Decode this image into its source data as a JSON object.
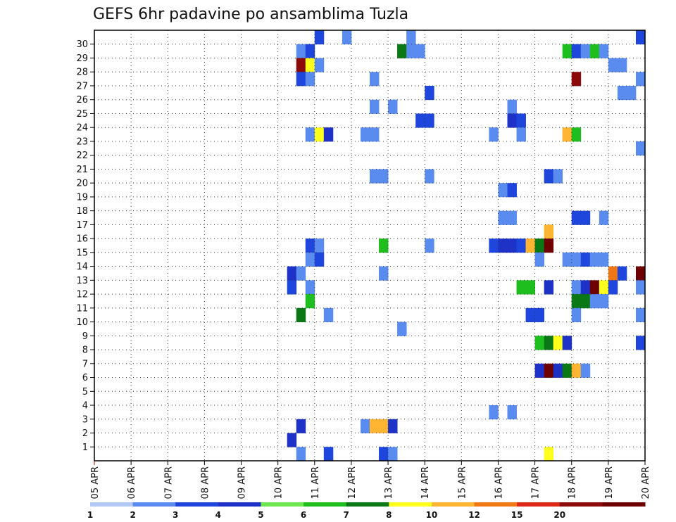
{
  "chart_data": {
    "type": "heatmap",
    "title": "GEFS 6hr padavine po ansamblima Tuzla",
    "y_categories": [
      "1",
      "2",
      "3",
      "4",
      "5",
      "6",
      "7",
      "8",
      "9",
      "10",
      "11",
      "12",
      "13",
      "14",
      "15",
      "16",
      "17",
      "18",
      "19",
      "20",
      "21",
      "22",
      "23",
      "24",
      "25",
      "26",
      "27",
      "28",
      "29",
      "30"
    ],
    "x_tick_labels": [
      "05 APR",
      "06 APR",
      "07 APR",
      "08 APR",
      "09 APR",
      "10 APR",
      "11 APR",
      "12 APR",
      "13 APR",
      "14 APR",
      "15 APR",
      "16 APR",
      "17 APR",
      "18 APR",
      "19 APR",
      "20 APR"
    ],
    "time_step_hours": 6,
    "grid": true,
    "colorbar": {
      "levels": [
        "1",
        "2",
        "3",
        "4",
        "5",
        "6",
        "7",
        "8",
        "10",
        "12",
        "15",
        "20"
      ],
      "colors": [
        "#b4c8f5",
        "#5a8cf0",
        "#1e46dc",
        "#1e32c8",
        "#6ee650",
        "#1ebe1e",
        "#0a7814",
        "#ffff1e",
        "#ffb432",
        "#f07814",
        "#dc2814",
        "#8c0a0a",
        "#6e0000"
      ]
    },
    "cells": [
      {
        "m": 30,
        "t": "11 APR 00",
        "c": 2
      },
      {
        "m": 30,
        "t": "11 APR 18",
        "c": 1
      },
      {
        "m": 30,
        "t": "13 APR 12",
        "c": 1
      },
      {
        "m": 30,
        "t": "19 APR 18",
        "c": 2
      },
      {
        "m": 29,
        "t": "10 APR 12",
        "c": 1
      },
      {
        "m": 29,
        "t": "10 APR 18",
        "c": 2
      },
      {
        "m": 29,
        "t": "13 APR 06",
        "c": 6
      },
      {
        "m": 29,
        "t": "13 APR 12",
        "c": 1
      },
      {
        "m": 29,
        "t": "13 APR 18",
        "c": 1
      },
      {
        "m": 29,
        "t": "17 APR 18",
        "c": 5
      },
      {
        "m": 29,
        "t": "18 APR 00",
        "c": 2
      },
      {
        "m": 29,
        "t": "18 APR 06",
        "c": 1
      },
      {
        "m": 29,
        "t": "18 APR 12",
        "c": 5
      },
      {
        "m": 29,
        "t": "18 APR 18",
        "c": 1
      },
      {
        "m": 28,
        "t": "10 APR 12",
        "c": 11
      },
      {
        "m": 28,
        "t": "10 APR 18",
        "c": 7
      },
      {
        "m": 28,
        "t": "11 APR 00",
        "c": 1
      },
      {
        "m": 28,
        "t": "19 APR 00",
        "c": 1
      },
      {
        "m": 28,
        "t": "19 APR 06",
        "c": 1
      },
      {
        "m": 27,
        "t": "10 APR 12",
        "c": 2
      },
      {
        "m": 27,
        "t": "10 APR 18",
        "c": 1
      },
      {
        "m": 27,
        "t": "12 APR 12",
        "c": 1
      },
      {
        "m": 27,
        "t": "18 APR 00",
        "c": 11
      },
      {
        "m": 27,
        "t": "19 APR 18",
        "c": 1
      },
      {
        "m": 26,
        "t": "14 APR 00",
        "c": 2
      },
      {
        "m": 26,
        "t": "19 APR 06",
        "c": 1
      },
      {
        "m": 26,
        "t": "19 APR 12",
        "c": 1
      },
      {
        "m": 25,
        "t": "12 APR 12",
        "c": 1
      },
      {
        "m": 25,
        "t": "13 APR 00",
        "c": 1
      },
      {
        "m": 25,
        "t": "16 APR 06",
        "c": 1
      },
      {
        "m": 24,
        "t": "13 APR 18",
        "c": 2
      },
      {
        "m": 24,
        "t": "14 APR 00",
        "c": 2
      },
      {
        "m": 24,
        "t": "16 APR 06",
        "c": 3
      },
      {
        "m": 24,
        "t": "16 APR 12",
        "c": 2
      },
      {
        "m": 23,
        "t": "10 APR 18",
        "c": 1
      },
      {
        "m": 23,
        "t": "11 APR 00",
        "c": 7
      },
      {
        "m": 23,
        "t": "11 APR 06",
        "c": 3
      },
      {
        "m": 23,
        "t": "12 APR 06",
        "c": 1
      },
      {
        "m": 23,
        "t": "12 APR 12",
        "c": 1
      },
      {
        "m": 23,
        "t": "15 APR 18",
        "c": 1
      },
      {
        "m": 23,
        "t": "16 APR 12",
        "c": 1
      },
      {
        "m": 23,
        "t": "17 APR 18",
        "c": 8
      },
      {
        "m": 23,
        "t": "18 APR 00",
        "c": 5
      },
      {
        "m": 22,
        "t": "19 APR 18",
        "c": 1
      },
      {
        "m": 20,
        "t": "12 APR 12",
        "c": 1
      },
      {
        "m": 20,
        "t": "12 APR 18",
        "c": 1
      },
      {
        "m": 20,
        "t": "14 APR 00",
        "c": 1
      },
      {
        "m": 20,
        "t": "17 APR 06",
        "c": 2
      },
      {
        "m": 20,
        "t": "17 APR 12",
        "c": 1
      },
      {
        "m": 19,
        "t": "16 APR 00",
        "c": 1
      },
      {
        "m": 19,
        "t": "16 APR 06",
        "c": 2
      },
      {
        "m": 17,
        "t": "16 APR 00",
        "c": 1
      },
      {
        "m": 17,
        "t": "16 APR 06",
        "c": 1
      },
      {
        "m": 17,
        "t": "18 APR 00",
        "c": 2
      },
      {
        "m": 17,
        "t": "18 APR 06",
        "c": 2
      },
      {
        "m": 17,
        "t": "18 APR 18",
        "c": 1
      },
      {
        "m": 16,
        "t": "17 APR 06",
        "c": 8
      },
      {
        "m": 15,
        "t": "10 APR 18",
        "c": 2
      },
      {
        "m": 15,
        "t": "11 APR 00",
        "c": 1
      },
      {
        "m": 15,
        "t": "12 APR 18",
        "c": 5
      },
      {
        "m": 15,
        "t": "14 APR 00",
        "c": 1
      },
      {
        "m": 15,
        "t": "15 APR 18",
        "c": 2
      },
      {
        "m": 15,
        "t": "16 APR 00",
        "c": 3
      },
      {
        "m": 15,
        "t": "16 APR 06",
        "c": 3
      },
      {
        "m": 15,
        "t": "16 APR 12",
        "c": 2
      },
      {
        "m": 15,
        "t": "16 APR 18",
        "c": 8
      },
      {
        "m": 15,
        "t": "17 APR 00",
        "c": 6
      },
      {
        "m": 15,
        "t": "17 APR 06",
        "c": 12
      },
      {
        "m": 14,
        "t": "10 APR 18",
        "c": 1
      },
      {
        "m": 14,
        "t": "11 APR 00",
        "c": 2
      },
      {
        "m": 14,
        "t": "17 APR 00",
        "c": 1
      },
      {
        "m": 14,
        "t": "17 APR 18",
        "c": 1
      },
      {
        "m": 14,
        "t": "18 APR 00",
        "c": 1
      },
      {
        "m": 14,
        "t": "18 APR 06",
        "c": 2
      },
      {
        "m": 14,
        "t": "18 APR 12",
        "c": 1
      },
      {
        "m": 14,
        "t": "18 APR 18",
        "c": 1
      },
      {
        "m": 13,
        "t": "10 APR 06",
        "c": 3
      },
      {
        "m": 13,
        "t": "10 APR 12",
        "c": 1
      },
      {
        "m": 13,
        "t": "12 APR 18",
        "c": 1
      },
      {
        "m": 13,
        "t": "19 APR 00",
        "c": 9
      },
      {
        "m": 13,
        "t": "19 APR 06",
        "c": 2
      },
      {
        "m": 13,
        "t": "19 APR 18",
        "c": 12
      },
      {
        "m": 12,
        "t": "10 APR 06",
        "c": 2
      },
      {
        "m": 12,
        "t": "10 APR 18",
        "c": 1
      },
      {
        "m": 12,
        "t": "16 APR 12",
        "c": 5
      },
      {
        "m": 12,
        "t": "16 APR 18",
        "c": 5
      },
      {
        "m": 12,
        "t": "17 APR 06",
        "c": 3
      },
      {
        "m": 12,
        "t": "18 APR 00",
        "c": 1
      },
      {
        "m": 12,
        "t": "18 APR 06",
        "c": 3
      },
      {
        "m": 12,
        "t": "18 APR 12",
        "c": 12
      },
      {
        "m": 12,
        "t": "18 APR 18",
        "c": 7
      },
      {
        "m": 12,
        "t": "19 APR 00",
        "c": 2
      },
      {
        "m": 12,
        "t": "19 APR 18",
        "c": 1
      },
      {
        "m": 11,
        "t": "10 APR 18",
        "c": 5
      },
      {
        "m": 11,
        "t": "18 APR 00",
        "c": 6
      },
      {
        "m": 11,
        "t": "18 APR 06",
        "c": 6
      },
      {
        "m": 11,
        "t": "18 APR 12",
        "c": 1
      },
      {
        "m": 11,
        "t": "18 APR 18",
        "c": 1
      },
      {
        "m": 10,
        "t": "10 APR 12",
        "c": 6
      },
      {
        "m": 10,
        "t": "11 APR 06",
        "c": 1
      },
      {
        "m": 10,
        "t": "16 APR 18",
        "c": 2
      },
      {
        "m": 10,
        "t": "17 APR 00",
        "c": 2
      },
      {
        "m": 10,
        "t": "18 APR 00",
        "c": 1
      },
      {
        "m": 10,
        "t": "19 APR 18",
        "c": 1
      },
      {
        "m": 9,
        "t": "13 APR 06",
        "c": 1
      },
      {
        "m": 8,
        "t": "17 APR 00",
        "c": 5
      },
      {
        "m": 8,
        "t": "17 APR 06",
        "c": 6
      },
      {
        "m": 8,
        "t": "17 APR 12",
        "c": 7
      },
      {
        "m": 8,
        "t": "17 APR 18",
        "c": 3
      },
      {
        "m": 8,
        "t": "19 APR 18",
        "c": 2
      },
      {
        "m": 6,
        "t": "17 APR 00",
        "c": 3
      },
      {
        "m": 6,
        "t": "17 APR 06",
        "c": 12
      },
      {
        "m": 6,
        "t": "17 APR 12",
        "c": 3
      },
      {
        "m": 6,
        "t": "17 APR 18",
        "c": 6
      },
      {
        "m": 6,
        "t": "18 APR 00",
        "c": 8
      },
      {
        "m": 6,
        "t": "18 APR 06",
        "c": 1
      },
      {
        "m": 3,
        "t": "15 APR 18",
        "c": 1
      },
      {
        "m": 3,
        "t": "16 APR 06",
        "c": 1
      },
      {
        "m": 2,
        "t": "10 APR 12",
        "c": 3
      },
      {
        "m": 2,
        "t": "12 APR 06",
        "c": 1
      },
      {
        "m": 2,
        "t": "12 APR 12",
        "c": 8
      },
      {
        "m": 2,
        "t": "12 APR 18",
        "c": 8
      },
      {
        "m": 2,
        "t": "13 APR 00",
        "c": 3
      },
      {
        "m": 1,
        "t": "10 APR 06",
        "c": 3
      },
      {
        "m": 0,
        "t": "10 APR 12",
        "c": 1
      },
      {
        "m": 0,
        "t": "11 APR 06",
        "c": 2
      },
      {
        "m": 0,
        "t": "12 APR 18",
        "c": 2
      },
      {
        "m": 0,
        "t": "13 APR 00",
        "c": 1
      },
      {
        "m": 0,
        "t": "17 APR 06",
        "c": 7
      }
    ]
  }
}
